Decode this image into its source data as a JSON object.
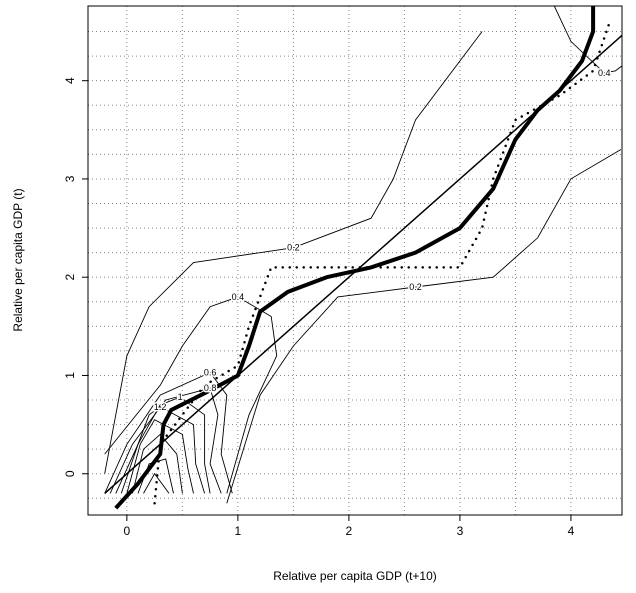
{
  "chart_data": {
    "type": "contour",
    "xlabel": "Relative per capita GDP (t+10)",
    "ylabel": "Relative per capita GDP (t)",
    "xlim": [
      -0.35,
      4.46
    ],
    "ylim": [
      -0.42,
      4.76
    ],
    "xticks": [
      0,
      1,
      2,
      3,
      4
    ],
    "yticks": [
      0,
      1,
      2,
      3,
      4
    ],
    "xgrid": [
      0,
      0.5,
      1,
      1.5,
      2,
      2.5,
      3,
      3.5,
      4
    ],
    "ygrid": [
      -0.25,
      0,
      0.25,
      0.5,
      0.75,
      1,
      1.25,
      1.5,
      1.75,
      2,
      2.25,
      2.5,
      2.75,
      3,
      3.25,
      3.5,
      3.75,
      4,
      4.25,
      4.5
    ],
    "color": "#000000",
    "lines": [
      {
        "style": "solid",
        "x": [
          -0.2,
          4.5
        ],
        "y": [
          -0.2,
          4.5
        ]
      },
      {
        "style": "thick",
        "x": [
          -0.1,
          0.1,
          0.3,
          0.33,
          0.4,
          0.7,
          1.0,
          1.1,
          1.2,
          1.45,
          1.8,
          2.2,
          2.6,
          3.0,
          3.3,
          3.5,
          3.7,
          3.9,
          4.1,
          4.2,
          4.2
        ],
        "y": [
          -0.35,
          -0.1,
          0.2,
          0.5,
          0.65,
          0.82,
          1.0,
          1.3,
          1.65,
          1.85,
          2.0,
          2.1,
          2.25,
          2.5,
          2.9,
          3.4,
          3.7,
          3.9,
          4.2,
          4.5,
          4.76
        ]
      },
      {
        "style": "dotted",
        "x": [
          0.25,
          0.3,
          0.7,
          1.0,
          1.1,
          1.3,
          3.0,
          3.2,
          3.3,
          3.5,
          3.9,
          4.2,
          4.35
        ],
        "y": [
          -0.3,
          0.3,
          0.9,
          1.1,
          1.5,
          2.1,
          2.1,
          2.5,
          3.0,
          3.6,
          3.85,
          4.1,
          4.6
        ]
      }
    ],
    "contours": [
      {
        "label": "0.2",
        "x": [
          -0.2,
          0.0,
          0.2,
          0.6,
          1.5,
          2.2,
          2.4,
          2.6,
          3.2
        ],
        "y": [
          0.0,
          1.2,
          1.7,
          2.15,
          2.3,
          2.6,
          3.0,
          3.6,
          4.5
        ]
      },
      {
        "label": "0.2",
        "x": [
          0.9,
          1.2,
          1.5,
          1.9,
          2.6,
          3.3,
          3.7,
          4.0,
          4.45
        ],
        "y": [
          -0.3,
          0.8,
          1.3,
          1.8,
          1.9,
          2.0,
          2.4,
          3.0,
          3.3
        ]
      },
      {
        "label": "0.4",
        "x": [
          -0.2,
          0.3,
          0.5,
          0.75,
          1.0,
          1.3,
          1.35,
          1.1,
          0.9
        ],
        "y": [
          0.2,
          0.9,
          1.3,
          1.7,
          1.8,
          1.6,
          1.2,
          0.6,
          -0.2
        ]
      },
      {
        "label": "0.4",
        "x": [
          3.85,
          4.0,
          4.3,
          4.4,
          4.46
        ],
        "y": [
          4.76,
          4.4,
          4.08,
          4.1,
          4.15
        ]
      },
      {
        "label": "0.6",
        "x": [
          -0.2,
          0.0,
          0.3,
          0.75,
          0.9,
          0.85,
          0.95
        ],
        "y": [
          -0.2,
          0.3,
          0.8,
          1.03,
          0.8,
          0.2,
          -0.2
        ]
      },
      {
        "label": "0.8",
        "x": [
          -0.15,
          0.05,
          0.35,
          0.75,
          0.82,
          0.75,
          0.85
        ],
        "y": [
          -0.2,
          0.3,
          0.75,
          0.87,
          0.6,
          0.1,
          -0.2
        ]
      },
      {
        "label": "1",
        "x": [
          -0.1,
          0.1,
          0.3,
          0.48,
          0.7,
          0.7,
          0.75
        ],
        "y": [
          -0.2,
          0.3,
          0.7,
          0.78,
          0.6,
          0.1,
          -0.2
        ]
      },
      {
        "label": "1.2",
        "x": [
          -0.05,
          0.1,
          0.2,
          0.3,
          0.6,
          0.62,
          0.7
        ],
        "y": [
          -0.2,
          0.3,
          0.6,
          0.68,
          0.5,
          0.1,
          -0.2
        ]
      },
      {
        "x": [
          0.0,
          0.12,
          0.25,
          0.5,
          0.55,
          0.6
        ],
        "y": [
          -0.2,
          0.3,
          0.55,
          0.4,
          0.05,
          -0.2
        ]
      },
      {
        "x": [
          0.05,
          0.15,
          0.3,
          0.45,
          0.5
        ],
        "y": [
          -0.2,
          0.25,
          0.4,
          0.2,
          -0.2
        ]
      },
      {
        "x": [
          0.1,
          0.2,
          0.35,
          0.42
        ],
        "y": [
          -0.2,
          0.1,
          0.15,
          -0.2
        ]
      },
      {
        "x": [
          0.15,
          0.25,
          0.38
        ],
        "y": [
          -0.2,
          0.0,
          -0.2
        ]
      }
    ]
  }
}
